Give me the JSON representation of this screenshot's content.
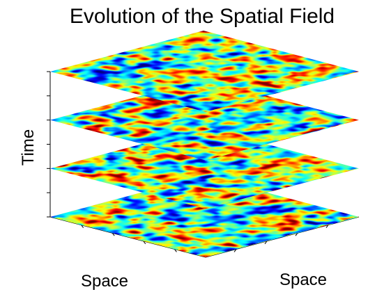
{
  "chart_data": {
    "type": "heatmap",
    "title": "Evolution of the Spatial Field",
    "xlabel": "Space",
    "ylabel": "Space",
    "zlabel": "Time",
    "colormap": "jet",
    "slice_count": 4,
    "z_tick_count": 7,
    "tick_labels_shown": false,
    "grid": false
  }
}
